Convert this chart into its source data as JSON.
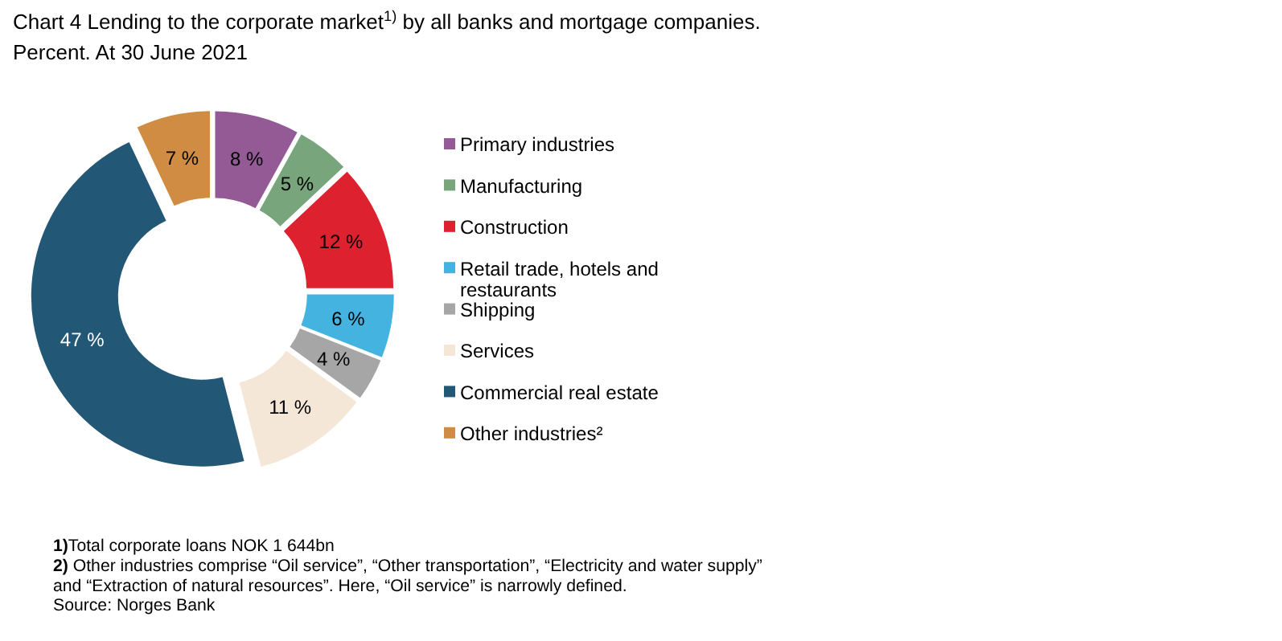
{
  "chart_data": {
    "type": "donut",
    "title": "Chart 4 Lending to the corporate market$^{1)}$ by all banks and mortgage companies.",
    "subtitle": "Percent. At 30 June 2021",
    "categories": [
      "Primary industries",
      "Manufacturing",
      "Construction",
      "Retail trade, hotels and restaurants",
      "Shipping",
      "Services",
      "Commercial real estate",
      "Other industries²"
    ],
    "values": [
      8,
      5,
      12,
      6,
      4,
      11,
      47,
      7
    ],
    "colors": [
      "#945a96",
      "#78a57c",
      "#dd212e",
      "#45b3e0",
      "#a6a6a6",
      "#f5e7d8",
      "#225875",
      "#cf8c42"
    ],
    "value_labels": [
      "8 %",
      "5 %",
      "12 %",
      "6 %",
      "4 %",
      "11 %",
      "47 %",
      "7 %"
    ],
    "legend": "right",
    "annotations": [
      "1)Total corporate loans NOK 1 644bn",
      "2) Other industries comprise “Oil service”, “Other transportation”, “Electricity and water supply”",
      "and “Extraction of natural resources”. Here, “Oil service” is narrowly defined.",
      "Source: Norges Bank"
    ]
  }
}
